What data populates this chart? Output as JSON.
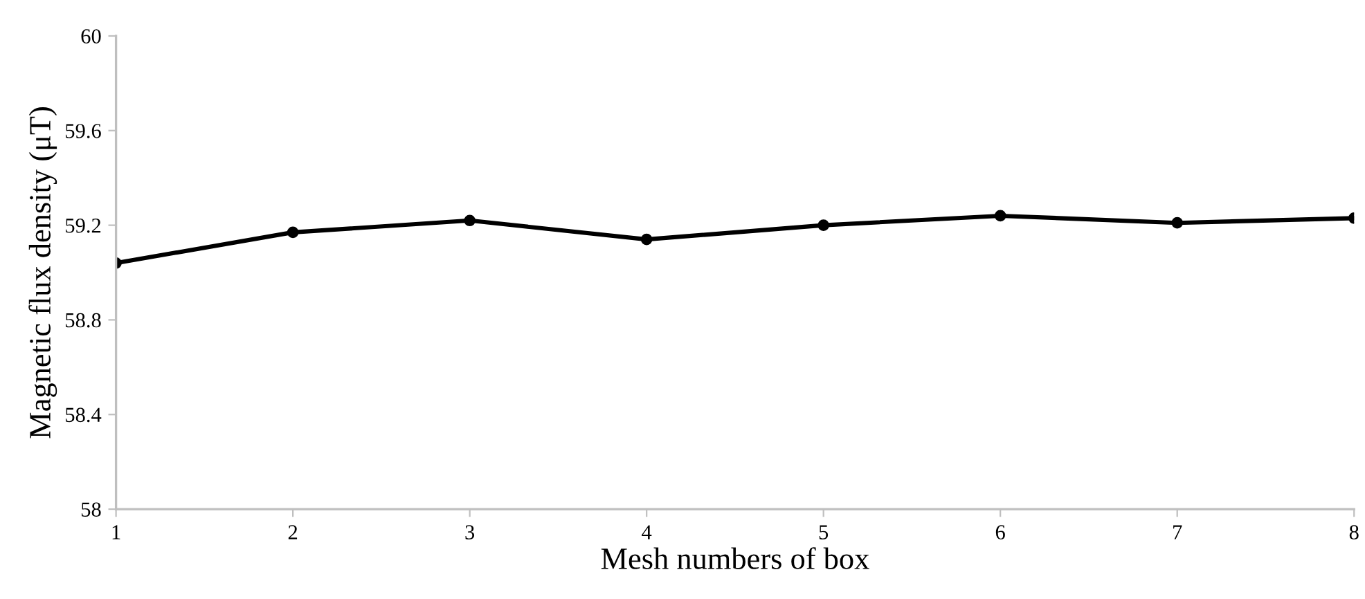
{
  "chart_data": {
    "type": "line",
    "xlabel": "Mesh numbers of box",
    "ylabel": "Magnetic flux density (μT)",
    "x": [
      1,
      2,
      3,
      4,
      5,
      6,
      7,
      8
    ],
    "series": [
      {
        "color": "#000000",
        "values": [
          59.04,
          59.17,
          59.22,
          59.14,
          59.2,
          59.24,
          59.21,
          59.23
        ]
      }
    ],
    "xlim": [
      1,
      8
    ],
    "xticks": [
      1,
      2,
      3,
      4,
      5,
      6,
      7,
      8
    ],
    "ylim": [
      58,
      60
    ],
    "yticks": [
      58,
      58.4,
      58.8,
      59.2,
      59.6,
      60
    ],
    "grid": false,
    "marker": "circle",
    "line_style": "solid"
  }
}
